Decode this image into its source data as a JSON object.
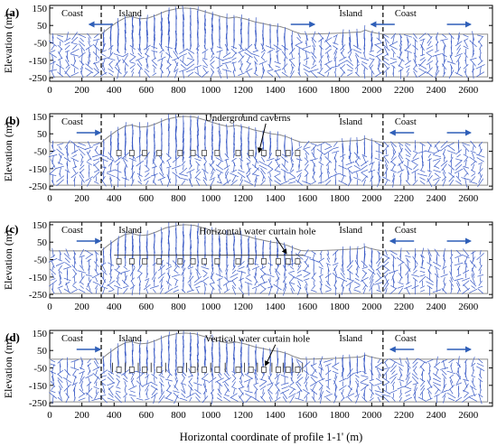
{
  "colors": {
    "vector": "#3b5bc6",
    "arrow": "#2f5fb8",
    "terrain": "#8a8a8a",
    "ink": "#000000"
  },
  "chart_data": {
    "type": "vector-field",
    "xlabel": "Horizontal coordinate of profile 1-1' (m)",
    "ylabel": "Elevation (m)",
    "xlim": [
      0,
      2750
    ],
    "ylim": [
      -270,
      165
    ],
    "xticks": [
      0,
      200,
      400,
      600,
      800,
      1000,
      1200,
      1400,
      1600,
      1800,
      2000,
      2200,
      2400,
      2600
    ],
    "yticks": [
      150,
      50,
      -50,
      -150,
      -250
    ],
    "ytick_labels": [
      "150",
      "50",
      "-50",
      "-150",
      "-250"
    ],
    "boundaries_x": [
      320,
      2070
    ],
    "terrain": {
      "x": [
        0,
        320,
        360,
        420,
        470,
        510,
        560,
        610,
        660,
        720,
        790,
        840,
        900,
        960,
        1010,
        1060,
        1110,
        1160,
        1220,
        1270,
        1320,
        1380,
        1430,
        1480,
        1520,
        1560,
        1600,
        1680,
        1780,
        1880,
        1930,
        1960,
        1990,
        2030,
        2070,
        2200,
        2400,
        2600,
        2720
      ],
      "y": [
        0,
        0,
        30,
        70,
        95,
        100,
        88,
        92,
        108,
        132,
        146,
        150,
        146,
        130,
        116,
        102,
        92,
        98,
        86,
        72,
        62,
        50,
        44,
        30,
        14,
        2,
        0,
        2,
        5,
        10,
        12,
        24,
        14,
        6,
        0,
        0,
        0,
        0,
        0
      ]
    },
    "domain": {
      "x_start": 0,
      "x_end": 2720,
      "y_bottom": -245
    },
    "panels": [
      {
        "label": "(a)",
        "regions": [
          {
            "text": "Coast",
            "x": 140
          },
          {
            "text": "Island",
            "x": 500
          },
          {
            "text": "Island",
            "x": 1870
          },
          {
            "text": "Coast",
            "x": 2210
          }
        ],
        "flow_arrows": [
          {
            "x": 320,
            "dir": "left"
          },
          {
            "x": 1570,
            "dir": "right"
          },
          {
            "x": 2070,
            "dir": "left"
          },
          {
            "x": 2540,
            "dir": "right"
          }
        ],
        "annotation": null,
        "caverns": null,
        "horizontal_curtain": null,
        "vertical_curtain": null
      },
      {
        "label": "(b)",
        "regions": [
          {
            "text": "Coast",
            "x": 140
          },
          {
            "text": "Island",
            "x": 1870
          },
          {
            "text": "Coast",
            "x": 2210
          }
        ],
        "flow_arrows": [
          {
            "x": 240,
            "dir": "right"
          },
          {
            "x": 2190,
            "dir": "left"
          },
          {
            "x": 2540,
            "dir": "right"
          }
        ],
        "annotation": {
          "text": "Underground caverns",
          "label_x": 1230,
          "label_y": 145,
          "point_x": 1300,
          "point_y": -55
        },
        "caverns": {
          "y": -60,
          "x": [
            430,
            510,
            590,
            680,
            810,
            890,
            960,
            1040,
            1170,
            1250,
            1330,
            1420,
            1480,
            1540
          ]
        },
        "horizontal_curtain": null,
        "vertical_curtain": null
      },
      {
        "label": "(c)",
        "regions": [
          {
            "text": "Coast",
            "x": 140
          },
          {
            "text": "Island",
            "x": 500
          },
          {
            "text": "Island",
            "x": 1870
          },
          {
            "text": "Coast",
            "x": 2210
          }
        ],
        "flow_arrows": [
          {
            "x": 240,
            "dir": "right"
          },
          {
            "x": 2190,
            "dir": "left"
          },
          {
            "x": 2540,
            "dir": "right"
          }
        ],
        "annotation": {
          "text": "Horizontal water curtain hole",
          "label_x": 1290,
          "label_y": 115,
          "point_x": 1470,
          "point_y": -15
        },
        "caverns": {
          "y": -60,
          "x": [
            430,
            510,
            590,
            680,
            810,
            890,
            960,
            1040,
            1170,
            1250,
            1330,
            1420,
            1480,
            1540
          ]
        },
        "horizontal_curtain": {
          "y": -25,
          "x_start": 400,
          "x_end": 1580
        },
        "vertical_curtain": null
      },
      {
        "label": "(d)",
        "regions": [
          {
            "text": "Coast",
            "x": 140
          },
          {
            "text": "Island",
            "x": 500
          },
          {
            "text": "Island",
            "x": 1870
          },
          {
            "text": "Coast",
            "x": 2210
          }
        ],
        "flow_arrows": [
          {
            "x": 240,
            "dir": "right"
          },
          {
            "x": 2190,
            "dir": "left"
          },
          {
            "x": 2540,
            "dir": "right"
          }
        ],
        "annotation": {
          "text": "Vertical water curtain hole",
          "label_x": 1290,
          "label_y": 120,
          "point_x": 1340,
          "point_y": -35
        },
        "caverns": {
          "y": -60,
          "x": [
            430,
            510,
            590,
            680,
            810,
            890,
            960,
            1040,
            1170,
            1250,
            1330,
            1420,
            1480,
            1540
          ]
        },
        "horizontal_curtain": null,
        "vertical_curtain": {
          "y_top": -20,
          "y_bottom": -75,
          "x": [
            390,
            470,
            550,
            630,
            720,
            850,
            920,
            1000,
            1090,
            1210,
            1290,
            1380,
            1450,
            1510,
            1570
          ]
        }
      }
    ]
  }
}
